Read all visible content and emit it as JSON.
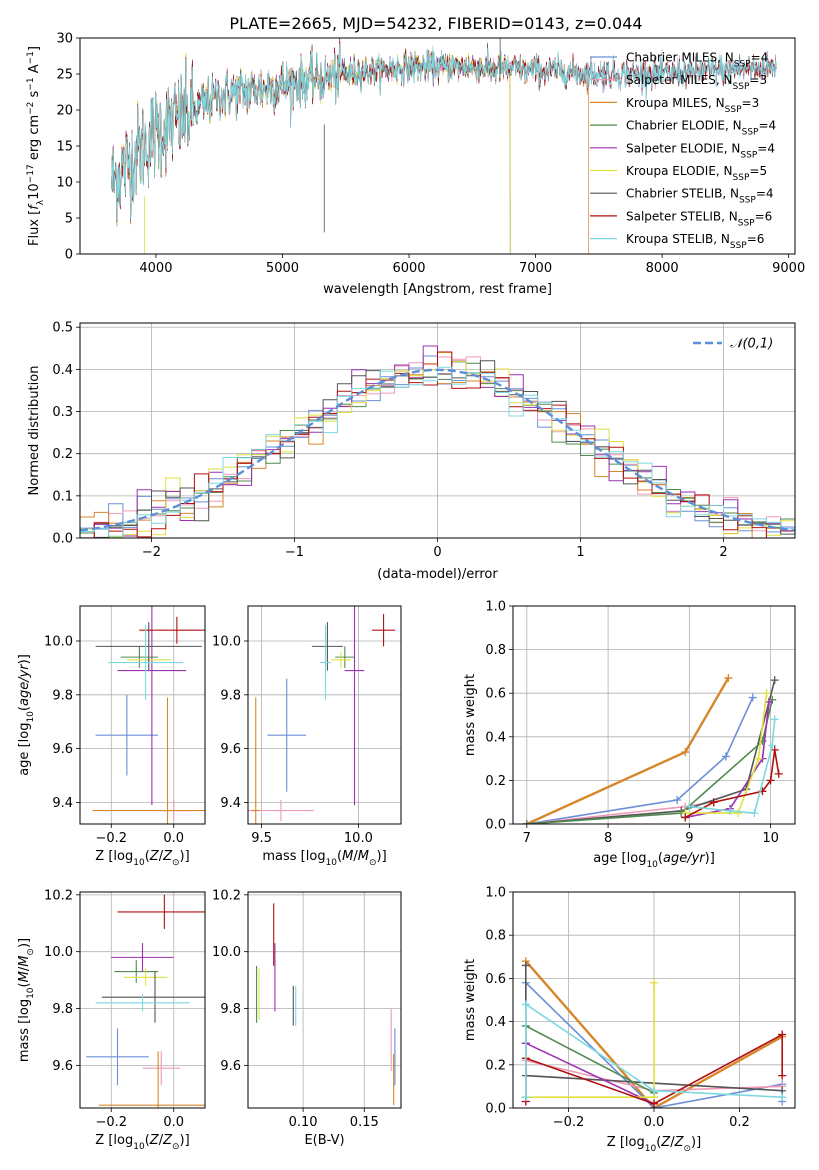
{
  "figure_title": "PLATE=2665, MJD=54232, FIBERID=0143, z=0.044",
  "colors": {
    "Chabrier MILES": "#6a8fd6",
    "Salpeter MILES": "#ef9ab8",
    "Kroupa MILES": "#d8862a",
    "Chabrier ELODIE": "#4f8a4f",
    "Salpeter ELODIE": "#9b30b0",
    "Kroupa ELODIE": "#e0e040",
    "Chabrier STELIB": "#555555",
    "Salpeter STELIB": "#b01010",
    "Kroupa STELIB": "#7ed8e0",
    "normal": "#5b8fd8"
  },
  "chart_data": [
    {
      "type": "line",
      "title": "PLATE=2665, MJD=54232, FIBERID=0143, z=0.044",
      "xlabel": "wavelength [Angstrom, rest frame]",
      "ylabel_parts": [
        "Flux [",
        "f",
        "λ",
        "10",
        "−17",
        " erg cm",
        "−2",
        " s",
        "−1",
        " A",
        "−1",
        "]"
      ],
      "xlim": [
        3400,
        9050
      ],
      "ylim": [
        0,
        30
      ],
      "xticks": [
        4000,
        5000,
        6000,
        7000,
        8000,
        9000
      ],
      "yticks": [
        0,
        5,
        10,
        15,
        20,
        25,
        30
      ],
      "grid": false,
      "legend_placement": "top-right",
      "series": [
        {
          "name": "Chabrier MILES",
          "label": "Chabrier MILES, N",
          "sub": "SSP",
          "n": "=4",
          "start": 3650,
          "end": 8900
        },
        {
          "name": "Salpeter MILES",
          "label": "Salpeter MILES, N",
          "sub": "SSP",
          "n": "=3",
          "start": 3650,
          "end": 8900
        },
        {
          "name": "Kroupa MILES",
          "label": "Kroupa MILES, N",
          "sub": "SSP",
          "n": "=3",
          "start": 3650,
          "end": 7420
        },
        {
          "name": "Chabrier ELODIE",
          "label": "Chabrier ELODIE, N",
          "sub": "SSP",
          "n": "=4",
          "start": 3650,
          "end": 6800
        },
        {
          "name": "Salpeter ELODIE",
          "label": "Salpeter ELODIE, N",
          "sub": "SSP",
          "n": "=4",
          "start": 3650,
          "end": 6800
        },
        {
          "name": "Kroupa ELODIE",
          "label": "Kroupa ELODIE, N",
          "sub": "SSP",
          "n": "=5",
          "start": 3650,
          "end": 6800
        },
        {
          "name": "Chabrier STELIB",
          "label": "Chabrier STELIB, N",
          "sub": "SSP",
          "n": "=4",
          "start": 3650,
          "end": 8900
        },
        {
          "name": "Salpeter STELIB",
          "label": "Salpeter STELIB, N",
          "sub": "SSP",
          "n": "=6",
          "start": 3650,
          "end": 8900
        },
        {
          "name": "Kroupa STELIB",
          "label": "Kroupa STELIB, N",
          "sub": "SSP",
          "n": "=6",
          "start": 3650,
          "end": 8900
        }
      ],
      "continuum": {
        "x": [
          3650,
          3800,
          4000,
          4200,
          4500,
          5000,
          5500,
          6000,
          6500,
          7000,
          7500,
          8000,
          8500,
          8900
        ],
        "y": [
          10,
          13,
          17,
          19,
          22,
          23.5,
          25,
          26,
          26,
          25.5,
          25,
          25,
          25.5,
          26
        ]
      }
    },
    {
      "type": "bar",
      "title": "",
      "xlabel": "(data-model)/error",
      "ylabel": "Normed distribution",
      "xlim": [
        -2.5,
        2.5
      ],
      "ylim": [
        0,
        0.51
      ],
      "xticks": [
        -2,
        -1,
        0,
        1,
        2
      ],
      "yticks": [
        0.0,
        0.1,
        0.2,
        0.3,
        0.4,
        0.5
      ],
      "grid": true,
      "legend": "𝒩(0,1)",
      "legend_placement": "top-right",
      "bin_width": 0.1,
      "series_names": [
        "Chabrier MILES",
        "Salpeter MILES",
        "Kroupa MILES",
        "Chabrier ELODIE",
        "Salpeter ELODIE",
        "Kroupa ELODIE",
        "Chabrier STELIB",
        "Salpeter STELIB",
        "Kroupa STELIB"
      ]
    },
    {
      "type": "scatter",
      "title": "",
      "xlabel": "Z [log10(Z/Z⊙)]",
      "ylabel": "age [log10(age/yr)]",
      "xlim": [
        -0.3,
        0.1
      ],
      "ylim": [
        9.32,
        10.13
      ],
      "xticks": [
        -0.2,
        0.0
      ],
      "yticks": [
        9.4,
        9.6,
        9.8,
        10.0
      ],
      "grid": true,
      "points": [
        {
          "name": "Chabrier MILES",
          "x": -0.15,
          "xerr": 0.1,
          "y": 9.65,
          "yerr": 0.15
        },
        {
          "name": "Salpeter MILES",
          "x": 0.0,
          "xerr": 0.05,
          "y": 9.37,
          "yerr": 0.04
        },
        {
          "name": "Kroupa MILES",
          "x": -0.02,
          "xerr": 0.24,
          "y": 9.37,
          "yerr": 0.42
        },
        {
          "name": "Chabrier ELODIE",
          "x": -0.11,
          "xerr": 0.06,
          "y": 9.94,
          "yerr": 0.04
        },
        {
          "name": "Salpeter ELODIE",
          "x": -0.07,
          "xerr": 0.11,
          "y": 9.89,
          "yerr": 0.5
        },
        {
          "name": "Kroupa ELODIE",
          "x": -0.08,
          "xerr": 0.07,
          "y": 9.93,
          "yerr": 0.03
        },
        {
          "name": "Chabrier STELIB",
          "x": -0.08,
          "xerr": 0.17,
          "y": 9.98,
          "yerr": 0.09
        },
        {
          "name": "Salpeter STELIB",
          "x": 0.01,
          "xerr": 0.12,
          "y": 10.04,
          "yerr": 0.05
        },
        {
          "name": "Kroupa STELIB",
          "x": -0.09,
          "xerr": 0.12,
          "y": 9.92,
          "yerr": 0.14
        }
      ]
    },
    {
      "type": "scatter",
      "title": "",
      "xlabel": "mass [log10(M/M⊙)]",
      "ylabel": "",
      "xlim": [
        9.43,
        10.22
      ],
      "ylim": [
        9.32,
        10.13
      ],
      "xticks": [
        9.5,
        10.0
      ],
      "yticks": [
        9.4,
        9.6,
        9.8,
        10.0
      ],
      "grid": true,
      "points": [
        {
          "name": "Chabrier MILES",
          "x": 9.63,
          "xerr": 0.1,
          "y": 9.65,
          "yerr": 0.21
        },
        {
          "name": "Salpeter MILES",
          "x": 9.6,
          "xerr": 0.17,
          "y": 9.37,
          "yerr": 0.04
        },
        {
          "name": "Kroupa MILES",
          "x": 9.47,
          "xerr": 0.02,
          "y": 9.37,
          "yerr": 0.42
        },
        {
          "name": "Chabrier ELODIE",
          "x": 9.93,
          "xerr": 0.05,
          "y": 9.94,
          "yerr": 0.04
        },
        {
          "name": "Salpeter ELODIE",
          "x": 9.98,
          "xerr": 0.05,
          "y": 9.89,
          "yerr": 0.5
        },
        {
          "name": "Kroupa ELODIE",
          "x": 9.91,
          "xerr": 0.05,
          "y": 9.93,
          "yerr": 0.03
        },
        {
          "name": "Chabrier STELIB",
          "x": 9.84,
          "xerr": 0.08,
          "y": 9.98,
          "yerr": 0.09
        },
        {
          "name": "Salpeter STELIB",
          "x": 10.13,
          "xerr": 0.06,
          "y": 10.04,
          "yerr": 0.06
        },
        {
          "name": "Kroupa STELIB",
          "x": 9.83,
          "xerr": 0.03,
          "y": 9.92,
          "yerr": 0.14
        }
      ]
    },
    {
      "type": "line",
      "title": "",
      "xlabel": "age [log10(age/yr)]",
      "ylabel": "mass weight",
      "xlim": [
        6.83,
        10.3
      ],
      "ylim": [
        0,
        1.0
      ],
      "xticks": [
        7,
        8,
        9,
        10
      ],
      "yticks": [
        0.0,
        0.2,
        0.4,
        0.6,
        0.8,
        1.0
      ],
      "grid": true,
      "series": [
        {
          "name": "Kroupa MILES",
          "x": [
            7.0,
            8.95,
            9.48
          ],
          "y": [
            0.0,
            0.33,
            0.67
          ]
        },
        {
          "name": "Chabrier MILES",
          "x": [
            7.0,
            8.85,
            9.45,
            9.78
          ],
          "y": [
            0.0,
            0.11,
            0.31,
            0.58
          ]
        },
        {
          "name": "Salpeter MILES",
          "x": [
            7.0,
            8.95,
            9.3
          ],
          "y": [
            0.0,
            0.08,
            0.1
          ]
        },
        {
          "name": "Chabrier STELIB",
          "x": [
            7.0,
            8.9,
            9.7,
            10.05
          ],
          "y": [
            0.0,
            0.06,
            0.16,
            0.66
          ]
        },
        {
          "name": "Chabrier ELODIE",
          "x": [
            7.0,
            8.9,
            9.9,
            10.02
          ],
          "y": [
            0.0,
            0.05,
            0.38,
            0.57
          ]
        },
        {
          "name": "Salpeter ELODIE",
          "x": [
            8.95,
            9.5,
            9.9,
            9.98
          ],
          "y": [
            0.03,
            0.07,
            0.3,
            0.56
          ]
        },
        {
          "name": "Kroupa ELODIE",
          "x": [
            8.95,
            9.6,
            9.85,
            9.95
          ],
          "y": [
            0.05,
            0.05,
            0.3,
            0.6
          ]
        },
        {
          "name": "Salpeter STELIB",
          "x": [
            8.95,
            9.3,
            9.9,
            10.0,
            10.05,
            10.1
          ],
          "y": [
            0.03,
            0.1,
            0.15,
            0.2,
            0.34,
            0.23
          ]
        },
        {
          "name": "Kroupa STELIB",
          "x": [
            9.0,
            9.5,
            9.8,
            10.02,
            10.05
          ],
          "y": [
            0.08,
            0.06,
            0.05,
            0.36,
            0.48
          ]
        }
      ]
    },
    {
      "type": "scatter",
      "title": "",
      "xlabel": "Z [log10(Z/Z⊙)]",
      "ylabel": "mass [log10(M/M⊙)]",
      "xlim": [
        -0.3,
        0.1
      ],
      "ylim": [
        9.45,
        10.21
      ],
      "xticks": [
        -0.2,
        0.0
      ],
      "yticks": [
        9.6,
        9.8,
        10.0,
        10.2
      ],
      "grid": true,
      "points": [
        {
          "name": "Chabrier MILES",
          "x": -0.18,
          "xerr": 0.1,
          "y": 9.63,
          "yerr": 0.1
        },
        {
          "name": "Salpeter MILES",
          "x": -0.04,
          "xerr": 0.06,
          "y": 9.59,
          "yerr": 0.06
        },
        {
          "name": "Kroupa MILES",
          "x": -0.05,
          "xerr": 0.19,
          "y": 9.46,
          "yerr": 0.19
        },
        {
          "name": "Chabrier ELODIE",
          "x": -0.12,
          "xerr": 0.07,
          "y": 9.93,
          "yerr": 0.04
        },
        {
          "name": "Salpeter ELODIE",
          "x": -0.1,
          "xerr": 0.1,
          "y": 9.98,
          "yerr": 0.05
        },
        {
          "name": "Kroupa ELODIE",
          "x": -0.09,
          "xerr": 0.07,
          "y": 9.91,
          "yerr": 0.03
        },
        {
          "name": "Chabrier STELIB",
          "x": -0.06,
          "xerr": 0.17,
          "y": 9.84,
          "yerr": 0.09
        },
        {
          "name": "Salpeter STELIB",
          "x": -0.03,
          "xerr": 0.15,
          "y": 10.14,
          "yerr": 0.06
        },
        {
          "name": "Kroupa STELIB",
          "x": -0.1,
          "xerr": 0.15,
          "y": 9.82,
          "yerr": 0.03
        }
      ]
    },
    {
      "type": "scatter",
      "title": "",
      "xlabel": "E(B-V)",
      "ylabel": "",
      "xlim": [
        0.055,
        0.18
      ],
      "ylim": [
        9.45,
        10.21
      ],
      "xticks": [
        0.1,
        0.15
      ],
      "yticks": [
        9.6,
        9.8,
        10.0,
        10.2
      ],
      "grid": true,
      "points": [
        {
          "name": "Chabrier MILES",
          "x": 0.175,
          "y": 9.63,
          "yerr": 0.1
        },
        {
          "name": "Salpeter MILES",
          "x": 0.172,
          "y": 9.69,
          "yerr": 0.11
        },
        {
          "name": "Kroupa MILES",
          "x": 0.174,
          "y": 9.55,
          "yerr": 0.09
        },
        {
          "name": "Chabrier ELODIE",
          "x": 0.062,
          "y": 9.85,
          "yerr": 0.1
        },
        {
          "name": "Salpeter ELODIE",
          "x": 0.077,
          "y": 9.91,
          "yerr": 0.12
        },
        {
          "name": "Kroupa ELODIE",
          "x": 0.064,
          "y": 9.85,
          "yerr": 0.09
        },
        {
          "name": "Chabrier STELIB",
          "x": 0.092,
          "y": 9.81,
          "yerr": 0.07
        },
        {
          "name": "Salpeter STELIB",
          "x": 0.076,
          "y": 10.06,
          "yerr": 0.11
        },
        {
          "name": "Kroupa STELIB",
          "x": 0.094,
          "y": 9.81,
          "yerr": 0.07
        }
      ]
    },
    {
      "type": "line",
      "title": "",
      "xlabel": "Z [log10(Z/Z⊙)]",
      "ylabel": "mass weight",
      "xlim": [
        -0.33,
        0.33
      ],
      "ylim": [
        0,
        1.0
      ],
      "xticks": [
        -0.2,
        0.0,
        0.2
      ],
      "yticks": [
        0.0,
        0.2,
        0.4,
        0.6,
        0.8,
        1.0
      ],
      "grid": true,
      "series": [
        {
          "name": "Kroupa MILES",
          "x": [
            -0.3,
            0.0,
            0.3
          ],
          "y": [
            0.68,
            0.0,
            0.33
          ]
        },
        {
          "name": "Chabrier MILES",
          "x": [
            -0.3,
            -0.3,
            0.0,
            0.3,
            0.3
          ],
          "y": [
            0.3,
            0.58,
            0.0,
            0.11,
            0.03
          ]
        },
        {
          "name": "Salpeter MILES",
          "x": [
            -0.3,
            0.0,
            0.3
          ],
          "y": [
            0.22,
            0.08,
            0.1
          ]
        },
        {
          "name": "Chabrier STELIB",
          "x": [
            -0.3,
            -0.3,
            0.3
          ],
          "y": [
            0.66,
            0.15,
            0.08
          ]
        },
        {
          "name": "Chabrier ELODIE",
          "x": [
            -0.3,
            -0.3,
            0.0
          ],
          "y": [
            0.05,
            0.38,
            0.07
          ]
        },
        {
          "name": "Salpeter ELODIE",
          "x": [
            -0.3,
            -0.3,
            0.0
          ],
          "y": [
            0.03,
            0.3,
            0.02
          ]
        },
        {
          "name": "Kroupa ELODIE",
          "x": [
            -0.3,
            0.0,
            0.0
          ],
          "y": [
            0.05,
            0.05,
            0.58
          ]
        },
        {
          "name": "Salpeter STELIB",
          "x": [
            -0.3,
            -0.3,
            0.0,
            0.3,
            0.3
          ],
          "y": [
            0.03,
            0.23,
            0.02,
            0.34,
            0.15
          ]
        },
        {
          "name": "Kroupa STELIB",
          "x": [
            -0.3,
            -0.3,
            0.0,
            0.3
          ],
          "y": [
            0.05,
            0.48,
            0.08,
            0.05
          ]
        }
      ]
    }
  ]
}
